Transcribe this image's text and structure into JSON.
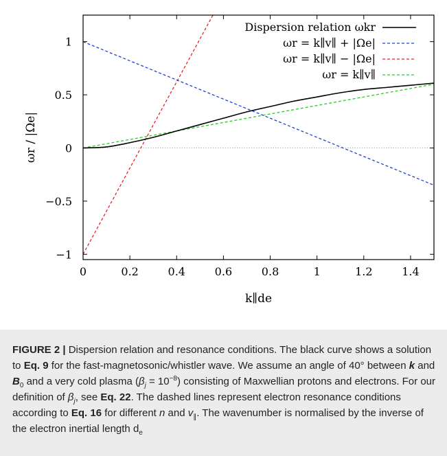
{
  "chart_data": {
    "type": "line",
    "xlabel": "k∥de",
    "ylabel": "ωr / |Ωe|",
    "xlim": [
      0,
      1.5
    ],
    "ylim": [
      -1.05,
      1.25
    ],
    "xticks": [
      "0",
      "0.2",
      "0.4",
      "0.6",
      "0.8",
      "1",
      "1.2",
      "1.4"
    ],
    "yticks": [
      "−1",
      "−0.5",
      "0",
      "0.5",
      "1"
    ],
    "zero_line": true,
    "legend_position": "top-right",
    "series": [
      {
        "name": "Dispersion relation ωkr",
        "style": "solid",
        "color": "#000000",
        "x": [
          0,
          0.1,
          0.2,
          0.3,
          0.4,
          0.5,
          0.6,
          0.7,
          0.8,
          0.9,
          1.0,
          1.1,
          1.2,
          1.3,
          1.4,
          1.5
        ],
        "y": [
          0,
          0.01,
          0.05,
          0.1,
          0.16,
          0.22,
          0.28,
          0.34,
          0.39,
          0.44,
          0.48,
          0.52,
          0.55,
          0.57,
          0.59,
          0.61
        ]
      },
      {
        "name": "ωr = k∥v∥ + |Ωe|",
        "style": "dashed",
        "color": "#1f3fd6",
        "x": [
          0,
          1.5
        ],
        "y": [
          1.0,
          -0.35
        ]
      },
      {
        "name": "ωr = k∥v∥ − |Ωe|",
        "style": "dashed",
        "color": "#e8202a",
        "x": [
          0,
          0.555
        ],
        "y": [
          -1.0,
          1.25
        ]
      },
      {
        "name": "ωr = k∥v∥",
        "style": "dashed",
        "color": "#22cc22",
        "x": [
          0,
          1.5
        ],
        "y": [
          0,
          0.6
        ]
      }
    ]
  },
  "caption": {
    "label": "FIGURE 2 |",
    "t1": " Dispersion relation and resonance conditions. The black curve shows a solution to ",
    "eq9": "Eq. 9",
    "t2": " for the fast-magnetosonic/whistler wave. We assume an angle of 40° between ",
    "k": "k",
    "t3": " and ",
    "B": "B",
    "B_sub": "0",
    "t4": " and a very cold plasma (",
    "beta1": "β",
    "beta1_sub": "j",
    "t5": " = 10",
    "exp": "−8",
    "t6": ") consisting of Maxwellian protons and electrons. For our definition of ",
    "beta2": "β",
    "beta2_sub": "j",
    "t7": ", see ",
    "eq22": "Eq. 22",
    "t8": ". The dashed lines represent electron resonance conditions according to ",
    "eq16": "Eq. 16",
    "t9": " for different ",
    "n": "n",
    "t10": " and ",
    "v": "v",
    "v_sub": "∥",
    "t11": ". The wavenumber is normalised by the inverse of the electron inertial length d",
    "d_sub": "e"
  }
}
